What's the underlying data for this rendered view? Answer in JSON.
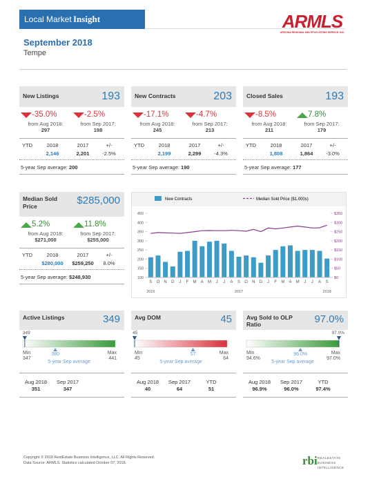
{
  "header": {
    "title_prefix": "Local Market",
    "title_bold": "Insight",
    "logo": "ARMLS",
    "logo_sub": "ARIZONA REGIONAL MULTIPLE LISTING SERVICE, INC.",
    "period": "September 2018",
    "area": "Tempe"
  },
  "cards": [
    {
      "title": "New Listings",
      "value": "193",
      "changes": [
        {
          "pct": "-35.0%",
          "from": "from Aug 2018:",
          "base": "297"
        },
        {
          "pct": "-2.5%",
          "from": "from Sep 2017:",
          "base": "198"
        }
      ],
      "ytd": {
        "label": "YTD",
        "y1": "2018",
        "y2": "2017",
        "pm": "+/-",
        "v1": "2,146",
        "v2": "2,201",
        "pct": "-2.5%"
      },
      "avg_label": "5-year Sep average:",
      "avg": "200"
    },
    {
      "title": "New Contracts",
      "value": "203",
      "changes": [
        {
          "pct": "-17.1%",
          "from": "from Aug 2018:",
          "base": "245"
        },
        {
          "pct": "-4.7%",
          "from": "from Sep 2017:",
          "base": "213"
        }
      ],
      "ytd": {
        "label": "YTD",
        "y1": "2018",
        "y2": "2017",
        "pm": "+/-",
        "v1": "2,199",
        "v2": "2,299",
        "pct": "-4.3%"
      },
      "avg_label": "5-year Sep average:",
      "avg": "190"
    },
    {
      "title": "Closed Sales",
      "value": "193",
      "changes": [
        {
          "pct": "-8.5%",
          "from": "from Aug 2018:",
          "base": "211"
        },
        {
          "pct": "7.8%",
          "from": "from Sep 2017:",
          "base": "179"
        }
      ],
      "ytd": {
        "label": "YTD",
        "y1": "2018",
        "y2": "2017",
        "pm": "+/-",
        "v1": "1,808",
        "v2": "1,864",
        "pct": "-3.0%"
      },
      "avg_label": "5-year Sep average:",
      "avg": "177"
    },
    {
      "title": "Median Sold Price",
      "value": "$285,000",
      "changes": [
        {
          "pct": "5.2%",
          "from": "from Aug 2018:",
          "base": "$271,000"
        },
        {
          "pct": "11.8%",
          "from": "from Sep 2017:",
          "base": "$255,000"
        }
      ],
      "ytd": {
        "label": "YTD",
        "y1": "2018",
        "y2": "2017",
        "pm": "+/-",
        "v1": "$280,000",
        "v2": "$259,250",
        "pct": "8.0%"
      },
      "avg_label": "5-year Sep average:",
      "avg": "$248,930"
    }
  ],
  "chart": {
    "type": "bar-line",
    "categories": [
      "S",
      "O",
      "N",
      "D",
      "J",
      "F",
      "M",
      "A",
      "M",
      "J",
      "J",
      "A",
      "S",
      "O",
      "N",
      "D",
      "J",
      "F",
      "M",
      "A",
      "M",
      "J",
      "J",
      "A",
      "S"
    ],
    "years": [
      "2016",
      null,
      null,
      null,
      null,
      null,
      null,
      null,
      null,
      null,
      null,
      null,
      "2017",
      null,
      null,
      null,
      null,
      null,
      null,
      null,
      null,
      null,
      null,
      null,
      "2018"
    ],
    "series": [
      {
        "name": "New Contracts",
        "color": "#3d9cc7",
        "values": [
          210,
          220,
          185,
          160,
          240,
          245,
          300,
          270,
          295,
          300,
          285,
          245,
          213,
          220,
          210,
          180,
          220,
          250,
          270,
          275,
          245,
          250,
          250,
          245,
          203
        ]
      },
      {
        "name": "Median Sold Price ($1,000s)",
        "color": "#8b3a8b",
        "axis": "y2",
        "values": [
          240,
          245,
          243,
          242,
          240,
          245,
          250,
          255,
          256,
          255,
          255,
          257,
          255,
          252,
          262,
          250,
          270,
          265,
          270,
          275,
          280,
          275,
          270,
          271,
          285
        ]
      }
    ],
    "ylim": [
      100,
      450
    ],
    "yticks": [
      100,
      150,
      200,
      250,
      300,
      350,
      400,
      450
    ],
    "y2lim": [
      0,
      350
    ],
    "y2ticks": [
      {
        "value": 0,
        "label": "$0"
      },
      {
        "value": 50,
        "label": "$50"
      },
      {
        "value": 100,
        "label": "$100"
      },
      {
        "value": 150,
        "label": "$150"
      },
      {
        "value": 200,
        "label": "$200"
      },
      {
        "value": 250,
        "label": "$250"
      },
      {
        "value": 300,
        "label": "$300"
      },
      {
        "value": 350,
        "label": "$350"
      }
    ]
  },
  "gauges": [
    {
      "title": "Active Listings",
      "value": 349,
      "min": 347,
      "max": 441,
      "avg": 380,
      "min_label": "Min",
      "max_label": "Max",
      "avg_label": "5-year Sep average",
      "colors": [
        "#ffffff",
        "#3a9a3a"
      ],
      "stats": [
        {
          "label": "Aug 2018",
          "value": "351"
        },
        {
          "label": "Sep 2017",
          "value": "347"
        }
      ]
    },
    {
      "title": "Avg DOM",
      "value": 45,
      "min": 45,
      "max": 64,
      "avg": 57,
      "min_label": "Min",
      "max_label": "Max",
      "avg_label": "5-year Sep average",
      "colors": [
        "#ffffff",
        "#d9323a"
      ],
      "stats": [
        {
          "label": "Aug 2018",
          "value": "40"
        },
        {
          "label": "Sep 2017",
          "value": "64"
        },
        {
          "label": "YTD",
          "value": "51"
        }
      ]
    },
    {
      "title": "Avg Sold to OLP Ratio",
      "value": 97.0,
      "min": 94.6,
      "max": 97.0,
      "avg": 96.0,
      "labels": {
        "value": "97.0%",
        "min": "94.6%",
        "max": "97.0%",
        "avg": "96.0%"
      },
      "min_label": "Min",
      "max_label": "Max",
      "avg_label": "5-year Sep average",
      "colors": [
        "#ffffff",
        "#3a9a3a"
      ],
      "stats": [
        {
          "label": "Aug 2018",
          "value": "96.9%"
        },
        {
          "label": "Sep 2017",
          "value": "96.0%"
        },
        {
          "label": "YTD",
          "value": "97.4%"
        }
      ]
    }
  ],
  "footer": {
    "copyright": "Copyright © 2018 RealEstate Business Intelligence, LLC. All Rights Reserved.",
    "source": "Data Source: ARMLS. Statistics calculated October 07, 2018.",
    "logo": "rbi",
    "logo_text": "REALESTATE BUSINESS INTELLIGENCE"
  }
}
